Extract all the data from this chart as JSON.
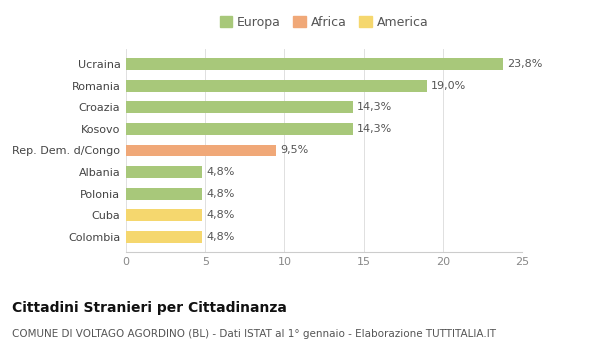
{
  "categories": [
    "Colombia",
    "Cuba",
    "Polonia",
    "Albania",
    "Rep. Dem. d/Congo",
    "Kosovo",
    "Croazia",
    "Romania",
    "Ucraina"
  ],
  "values": [
    4.8,
    4.8,
    4.8,
    4.8,
    9.5,
    14.3,
    14.3,
    19.0,
    23.8
  ],
  "labels": [
    "4,8%",
    "4,8%",
    "4,8%",
    "4,8%",
    "9,5%",
    "14,3%",
    "14,3%",
    "19,0%",
    "23,8%"
  ],
  "colors": [
    "#f5d76e",
    "#f5d76e",
    "#a8c87a",
    "#a8c87a",
    "#f0a878",
    "#a8c87a",
    "#a8c87a",
    "#a8c87a",
    "#a8c87a"
  ],
  "legend": [
    {
      "label": "Europa",
      "color": "#a8c87a"
    },
    {
      "label": "Africa",
      "color": "#f0a878"
    },
    {
      "label": "America",
      "color": "#f5d76e"
    }
  ],
  "title": "Cittadini Stranieri per Cittadinanza",
  "subtitle": "COMUNE DI VOLTAGO AGORDINO (BL) - Dati ISTAT al 1° gennaio - Elaborazione TUTTITALIA.IT",
  "xlim": [
    0,
    25
  ],
  "xticks": [
    0,
    5,
    10,
    15,
    20,
    25
  ],
  "background_color": "#ffffff",
  "bar_height": 0.55,
  "label_fontsize": 8,
  "title_fontsize": 10,
  "subtitle_fontsize": 7.5,
  "tick_fontsize": 8,
  "legend_fontsize": 9
}
